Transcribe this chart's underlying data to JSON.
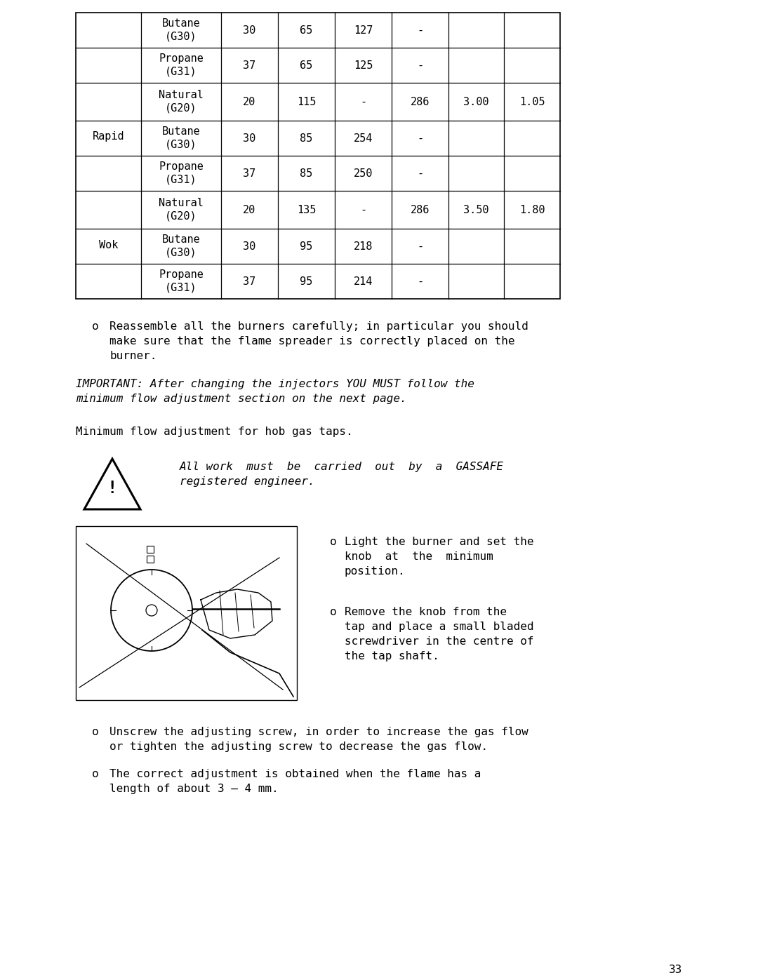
{
  "bg_color": "#ffffff",
  "rows": [
    {
      "group": "",
      "gas": "Butane\n(G30)",
      "col2": "30",
      "col3": "65",
      "col4": "127",
      "col5": "-",
      "col6": "",
      "col7": ""
    },
    {
      "group": "",
      "gas": "Propane\n(G31)",
      "col2": "37",
      "col3": "65",
      "col4": "125",
      "col5": "-",
      "col6": "",
      "col7": ""
    },
    {
      "group": "Rapid",
      "gas": "Natural\n(G20)",
      "col2": "20",
      "col3": "115",
      "col4": "-",
      "col5": "286",
      "col6": "3.00",
      "col7": "1.05"
    },
    {
      "group": "",
      "gas": "Butane\n(G30)",
      "col2": "30",
      "col3": "85",
      "col4": "254",
      "col5": "-",
      "col6": "",
      "col7": ""
    },
    {
      "group": "",
      "gas": "Propane\n(G31)",
      "col2": "37",
      "col3": "85",
      "col4": "250",
      "col5": "-",
      "col6": "",
      "col7": ""
    },
    {
      "group": "Wok",
      "gas": "Natural\n(G20)",
      "col2": "20",
      "col3": "135",
      "col4": "-",
      "col5": "286",
      "col6": "3.50",
      "col7": "1.80"
    },
    {
      "group": "",
      "gas": "Butane\n(G30)",
      "col2": "30",
      "col3": "95",
      "col4": "218",
      "col5": "-",
      "col6": "",
      "col7": ""
    },
    {
      "group": "",
      "gas": "Propane\n(G31)",
      "col2": "37",
      "col3": "95",
      "col4": "214",
      "col5": "-",
      "col6": "",
      "col7": ""
    }
  ],
  "group_spans": [
    {
      "label": "",
      "start": 0,
      "end": 1
    },
    {
      "label": "Rapid",
      "start": 2,
      "end": 4
    },
    {
      "label": "Wok",
      "start": 5,
      "end": 7
    }
  ],
  "bullet1": "Reassemble all the burners carefully; in particular you should\nmake sure that the flame spreader is correctly placed on the\nburner.",
  "important_text": "IMPORTANT: After changing the injectors YOU MUST follow the\nminimum flow adjustment section on the next page.",
  "min_flow_heading": "Minimum flow adjustment for hob gas taps.",
  "warning_text": "All work  must  be  carried  out  by  a  GASSAFE\nregistered engineer.",
  "rb1": "Light the burner and set the\nknob  at  the  minimum\nposition.",
  "rb2": "Remove the knob from the\ntap and place a small bladed\nscrewdriver in the centre of\nthe tap shaft.",
  "bullet3": "Unscrew the adjusting screw, in order to increase the gas flow\nor tighten the adjusting screw to decrease the gas flow.",
  "bullet4": "The correct adjustment is obtained when the flame has a\nlength of about 3 – 4 mm.",
  "page_number": "33",
  "fs_table": 11,
  "fs_body": 11.5
}
